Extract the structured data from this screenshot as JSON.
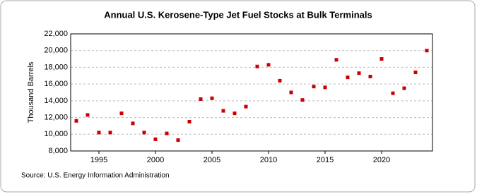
{
  "chart_data": {
    "type": "scatter",
    "title": "Annual U.S. Kerosene-Type Jet Fuel Stocks at Bulk Terminals",
    "y_label": "Thousand Barrels",
    "source": "Source: U.S. Energy Information Administration",
    "x": [
      1993,
      1994,
      1995,
      1996,
      1997,
      1998,
      1999,
      2000,
      2001,
      2002,
      2003,
      2004,
      2005,
      2006,
      2007,
      2008,
      2009,
      2010,
      2011,
      2012,
      2013,
      2014,
      2015,
      2016,
      2017,
      2018,
      2019,
      2020,
      2021,
      2022,
      2023,
      2024
    ],
    "series": [
      {
        "name": "Stocks",
        "color": "#cc0000",
        "values": [
          11600,
          12300,
          10200,
          10200,
          12500,
          11300,
          10200,
          9400,
          10100,
          9300,
          11500,
          14200,
          14300,
          12800,
          12500,
          13300,
          18100,
          18300,
          16400,
          15000,
          14100,
          15700,
          15600,
          18900,
          16800,
          17300,
          16900,
          19000,
          14900,
          15500,
          17400,
          20000
        ]
      }
    ],
    "xlim": [
      1992.5,
      2024.5
    ],
    "xticks": [
      1995,
      2000,
      2005,
      2010,
      2015,
      2020
    ],
    "ylim": [
      8000,
      22000
    ],
    "yticks": [
      {
        "value": 8000,
        "label": "8,000"
      },
      {
        "value": 10000,
        "label": "10,000"
      },
      {
        "value": 12000,
        "label": "12,000"
      },
      {
        "value": 14000,
        "label": "14,000"
      },
      {
        "value": 16000,
        "label": "16,000"
      },
      {
        "value": 18000,
        "label": "18,000"
      },
      {
        "value": 20000,
        "label": "20,000"
      },
      {
        "value": 22000,
        "label": "22,000"
      }
    ],
    "grid": true
  }
}
